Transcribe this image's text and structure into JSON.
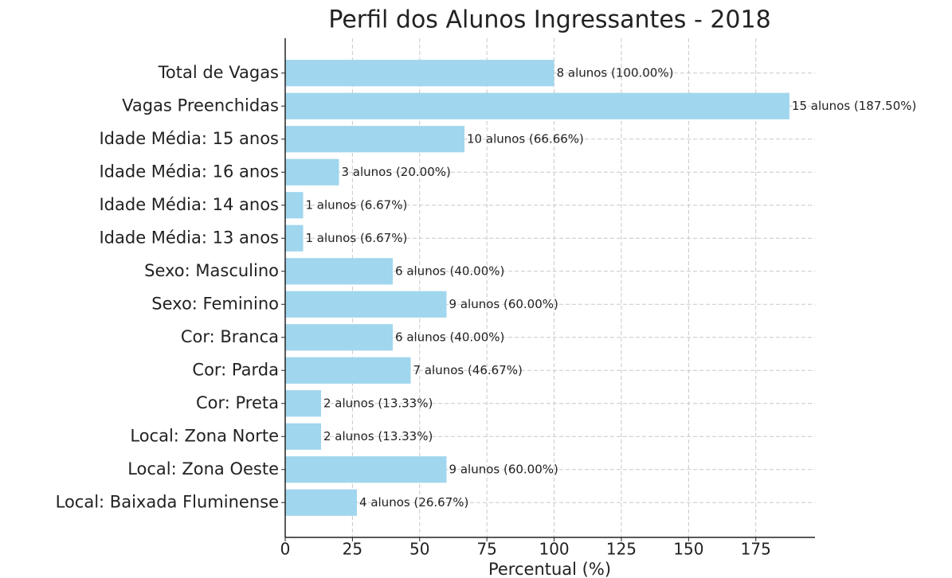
{
  "chart_data": {
    "type": "bar",
    "orientation": "horizontal",
    "title": "Perfil dos Alunos Ingressantes - 2018",
    "xlabel": "Percentual (%)",
    "categories": [
      "Total de Vagas",
      "Vagas Preenchidas",
      "Idade Média: 15 anos",
      "Idade Média: 16 anos",
      "Idade Média: 14 anos",
      "Idade Média: 13 anos",
      "Sexo: Masculino",
      "Sexo: Feminino",
      "Cor: Branca",
      "Cor: Parda",
      "Cor: Preta",
      "Local: Zona Norte",
      "Local: Zona Oeste",
      "Local: Baixada Fluminense"
    ],
    "values": [
      100,
      187.5,
      66.66,
      20,
      6.67,
      6.67,
      40,
      60,
      40,
      46.67,
      13.33,
      13.33,
      60,
      26.67
    ],
    "value_labels": [
      "8 alunos (100.00%)",
      "15 alunos (187.50%)",
      "10 alunos (66.66%)",
      "3 alunos (20.00%)",
      "1 alunos (6.67%)",
      "1 alunos (6.67%)",
      "6 alunos (40.00%)",
      "9 alunos (60.00%)",
      "6 alunos (40.00%)",
      "7 alunos (46.67%)",
      "2 alunos (13.33%)",
      "2 alunos (13.33%)",
      "9 alunos (60.00%)",
      "4 alunos (26.67%)"
    ],
    "color": "#a0d6ee",
    "xlim": [
      0,
      197
    ],
    "xticks": [
      0,
      25,
      50,
      75,
      100,
      125,
      150,
      175
    ],
    "grid": true
  }
}
